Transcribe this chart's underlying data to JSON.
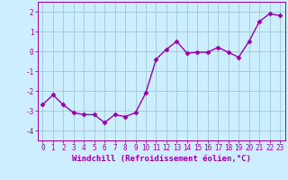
{
  "x": [
    0,
    1,
    2,
    3,
    4,
    5,
    6,
    7,
    8,
    9,
    10,
    11,
    12,
    13,
    14,
    15,
    16,
    17,
    18,
    19,
    20,
    21,
    22,
    23
  ],
  "y": [
    -2.7,
    -2.2,
    -2.7,
    -3.1,
    -3.2,
    -3.2,
    -3.6,
    -3.2,
    -3.3,
    -3.1,
    -2.1,
    -0.4,
    0.1,
    0.5,
    -0.1,
    -0.05,
    -0.05,
    0.2,
    -0.05,
    -0.3,
    0.5,
    1.5,
    1.9,
    1.8
  ],
  "line_color": "#9900aa",
  "marker": "D",
  "markersize": 2.5,
  "linewidth": 1.0,
  "bg_color": "#cceeff",
  "grid_color": "#99cccc",
  "xlabel": "Windchill (Refroidissement éolien,°C)",
  "ylim": [
    -4.5,
    2.5
  ],
  "xlim": [
    -0.5,
    23.5
  ],
  "yticks": [
    -4,
    -3,
    -2,
    -1,
    0,
    1,
    2
  ],
  "xticks": [
    0,
    1,
    2,
    3,
    4,
    5,
    6,
    7,
    8,
    9,
    10,
    11,
    12,
    13,
    14,
    15,
    16,
    17,
    18,
    19,
    20,
    21,
    22,
    23
  ],
  "tick_color": "#9900aa",
  "tick_fontsize": 5.5,
  "xlabel_fontsize": 6.5
}
